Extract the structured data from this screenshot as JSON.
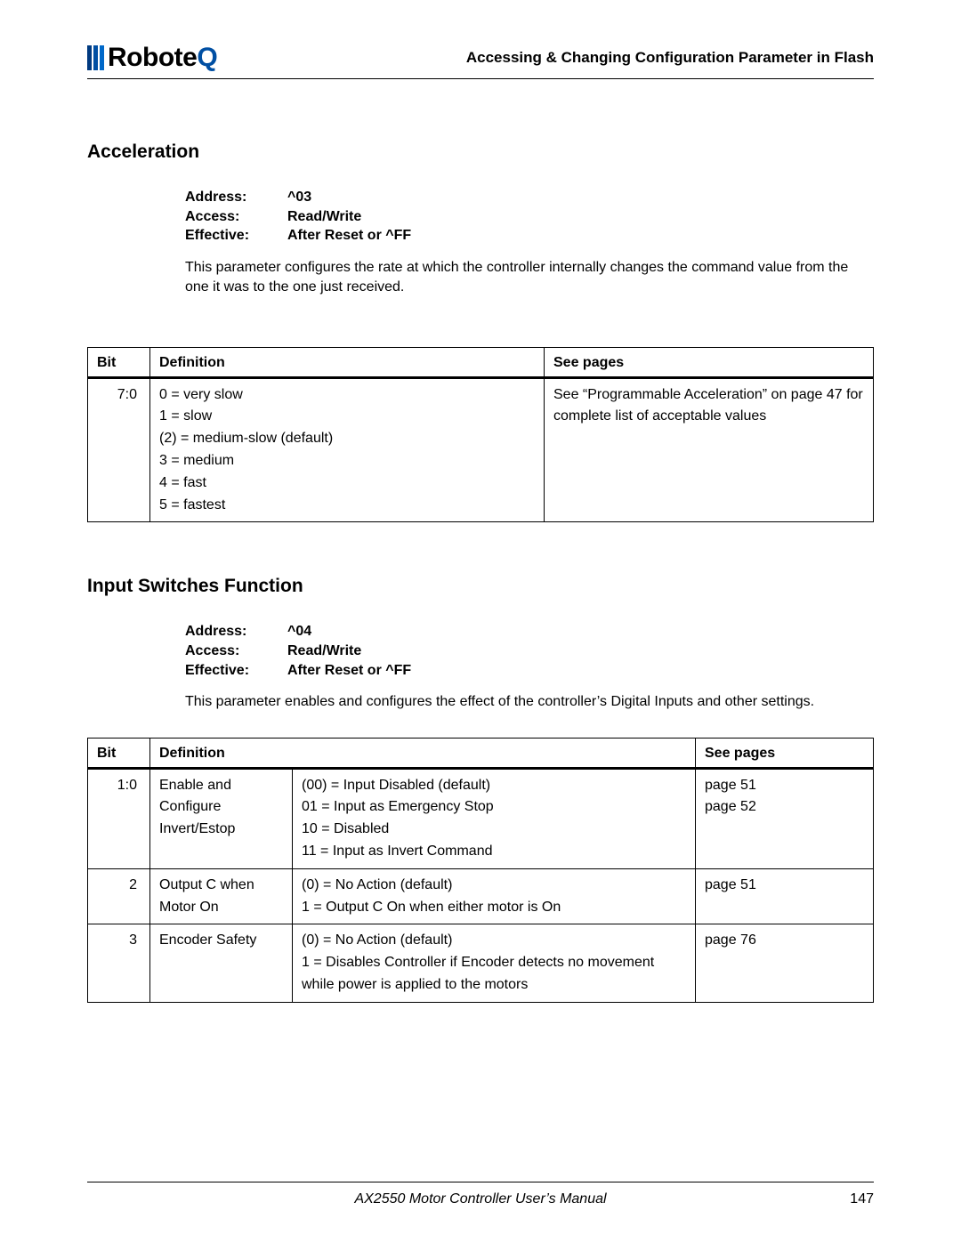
{
  "header": {
    "logo_black": "Robote",
    "logo_blue": "Q",
    "title": "Accessing & Changing Configuration Parameter in Flash"
  },
  "section1": {
    "heading": "Acceleration",
    "meta": {
      "address_label": "Address:",
      "address_value": "^03",
      "access_label": "Access:",
      "access_value": "Read/Write",
      "effective_label": "Effective:",
      "effective_value": "After Reset or ^FF"
    },
    "description": "This parameter configures the rate at which the controller internally changes the command value from the one it was to the one just received.",
    "table": {
      "h_bit": "Bit",
      "h_def": "Definition",
      "h_see": "See pages",
      "bit": "7:0",
      "def0": "0 = very slow",
      "def1": "1 = slow",
      "def2": "(2) = medium-slow (default)",
      "def3": "3 = medium",
      "def4": "4 = fast",
      "def5": "5 = fastest",
      "see": "See “Programmable Acceleration” on page 47 for complete list of acceptable values"
    }
  },
  "section2": {
    "heading": "Input Switches Function",
    "meta": {
      "address_label": "Address:",
      "address_value": "^04",
      "access_label": "Access:",
      "access_value": "Read/Write",
      "effective_label": "Effective:",
      "effective_value": "After Reset or ^FF"
    },
    "description": "This parameter enables and configures the effect of the controller’s Digital Inputs and other settings.",
    "table": {
      "h_bit": "Bit",
      "h_def": "Definition",
      "h_see": "See pages",
      "r1_bit": "1:0",
      "r1_def": "Enable and Configure Invert/Estop",
      "r1_v0": "(00) = Input Disabled (default)",
      "r1_v1": "01 = Input as Emergency Stop",
      "r1_v2": "10 = Disabled",
      "r1_v3": "11 = Input as Invert Command",
      "r1_see0": "page 51",
      "r1_see1": "page 52",
      "r2_bit": "2",
      "r2_def": "Output C when Motor On",
      "r2_v0": "(0) = No Action (default)",
      "r2_v1": "1 = Output C On when either motor is On",
      "r2_see": "page 51",
      "r3_bit": "3",
      "r3_def": "Encoder Safety",
      "r3_v0": "(0) = No Action (default)",
      "r3_v1": "1 = Disables Controller if Encoder detects no movement while power is applied to the motors",
      "r3_see": "page 76"
    }
  },
  "footer": {
    "title": "AX2550 Motor Controller User’s Manual",
    "page": "147"
  }
}
